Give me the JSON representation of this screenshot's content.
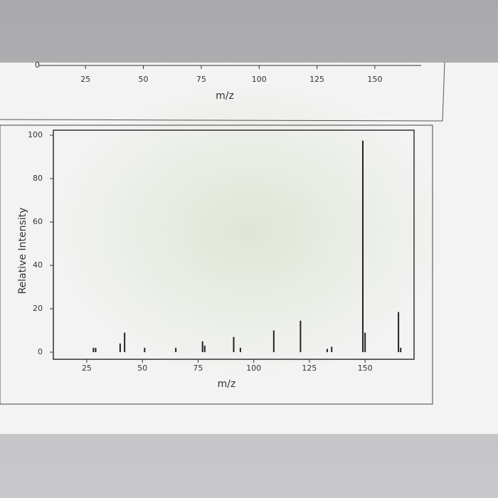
{
  "chart_data": [
    {
      "type": "spectrum",
      "xlabel": "m/z",
      "xlim": [
        6.5,
        170
      ],
      "xticks": [
        25,
        50,
        75,
        100,
        125,
        150
      ],
      "yticks": [
        0
      ]
    },
    {
      "type": "spectrum",
      "xlabel": "m/z",
      "ylabel": "Relative Intensity",
      "xlim": [
        10,
        172
      ],
      "xticks": [
        25,
        50,
        75,
        100,
        125,
        150
      ],
      "ylim": [
        0,
        100
      ],
      "yticks": [
        0,
        20,
        40,
        60,
        80,
        100
      ],
      "color": "#222",
      "x": [
        28,
        29,
        40,
        42,
        51,
        65,
        77,
        78,
        91,
        94,
        109,
        121,
        133,
        135,
        149,
        150,
        165,
        166
      ],
      "values": [
        2,
        2,
        4,
        9,
        2,
        2,
        5,
        3,
        7,
        2,
        10,
        14.5,
        1.5,
        2.5,
        97.5,
        9,
        18.5,
        2
      ]
    }
  ]
}
